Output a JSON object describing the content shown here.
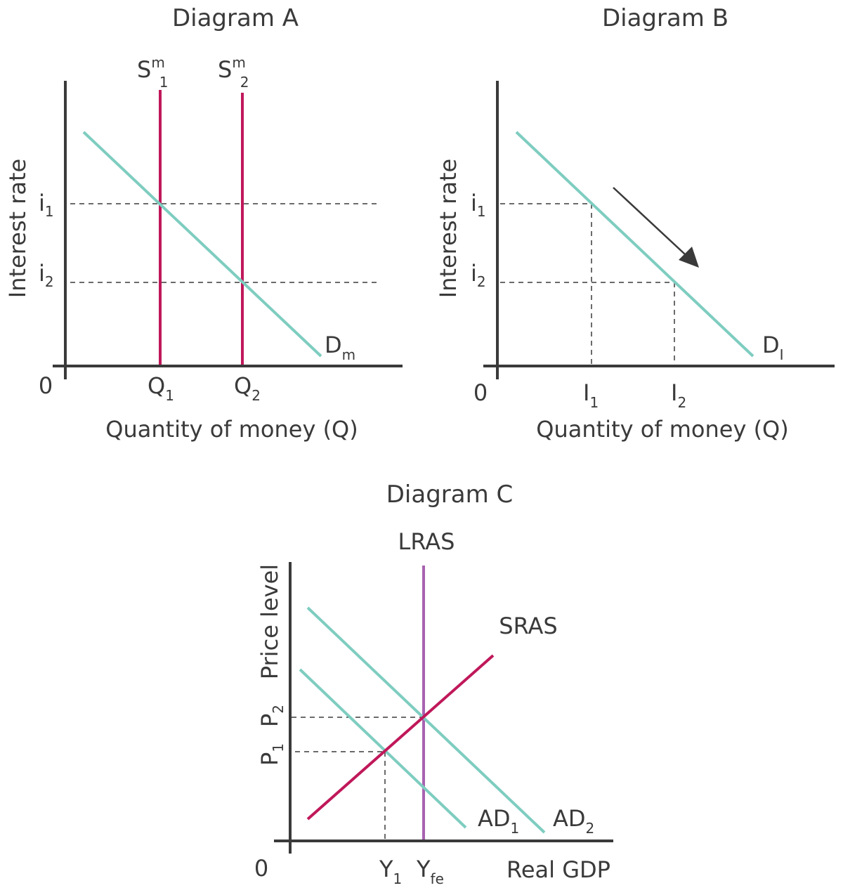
{
  "colors": {
    "demand": "#7ecdc0",
    "money_supply": "#c0185a",
    "lras": "#a862b0",
    "axes": "#3a3a3a"
  },
  "diagram_a": {
    "title": "Diagram A",
    "ylabel": "Interest rate",
    "xlabel": "Quantity of money (Q)",
    "origin": "0",
    "i1": "i",
    "i1_sub": "1",
    "i2": "i",
    "i2_sub": "2",
    "q1": "Q",
    "q1_sub": "1",
    "q2": "Q",
    "q2_sub": "2",
    "s1": "S",
    "s1_sup": "m",
    "s1_sub": "1",
    "s2": "S",
    "s2_sup": "m",
    "s2_sub": "2",
    "demand": "D",
    "demand_sub": "m"
  },
  "diagram_b": {
    "title": "Diagram B",
    "ylabel": "Interest rate",
    "xlabel": "Quantity of money (Q)",
    "origin": "0",
    "i1": "i",
    "i1_sub": "1",
    "i2": "i",
    "i2_sub": "2",
    "x1": "I",
    "x1_sub": "1",
    "x2": "I",
    "x2_sub": "2",
    "demand": "D",
    "demand_sub": "I"
  },
  "diagram_c": {
    "title": "Diagram C",
    "lras": "LRAS",
    "sras": "SRAS",
    "ylabel": "Price level",
    "xlabel": "Real GDP",
    "origin": "0",
    "p1": "P",
    "p1_sub": "1",
    "p2": "P",
    "p2_sub": "2",
    "y1": "Y",
    "y1_sub": "1",
    "yfe": "Y",
    "yfe_sub": "fe",
    "ad1": "AD",
    "ad1_sub": "1",
    "ad2": "AD",
    "ad2_sub": "2"
  }
}
